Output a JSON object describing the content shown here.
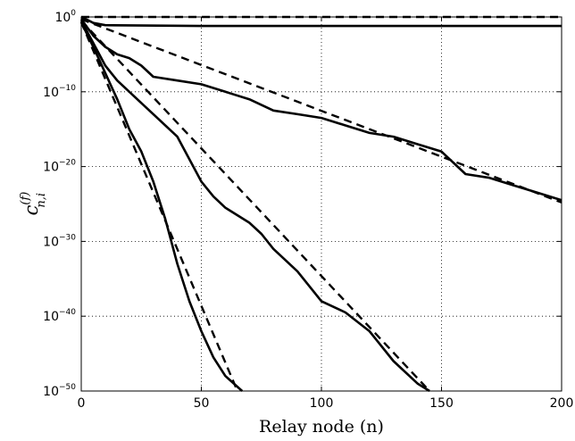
{
  "chart_data": {
    "type": "line",
    "title": "",
    "xlabel": "Relay node (n)",
    "ylabel": {
      "base": "c",
      "superscript": "(f)",
      "subscript": "n,i"
    },
    "xlim": [
      0,
      200
    ],
    "ylim_exponent": [
      -50,
      0
    ],
    "yscale": "log",
    "grid": true,
    "x_ticks": [
      "0",
      "50",
      "100",
      "150",
      "200"
    ],
    "y_ticks": [
      {
        "base": "10",
        "exp": "0"
      },
      {
        "base": "10",
        "exp": "−10"
      },
      {
        "base": "10",
        "exp": "−20"
      },
      {
        "base": "10",
        "exp": "−30"
      },
      {
        "base": "10",
        "exp": "−40"
      },
      {
        "base": "10",
        "exp": "−50"
      }
    ],
    "series": [
      {
        "style": "dashed",
        "log10_y": [
          [
            0,
            0
          ],
          [
            200,
            0
          ]
        ]
      },
      {
        "style": "solid",
        "log10_y": [
          [
            0,
            0
          ],
          [
            2,
            -0.3
          ],
          [
            5,
            -0.8
          ],
          [
            10,
            -1.1
          ],
          [
            50,
            -1.2
          ],
          [
            100,
            -1.2
          ],
          [
            150,
            -1.2
          ],
          [
            200,
            -1.2
          ]
        ]
      },
      {
        "style": "dashed",
        "log10_y": [
          [
            0,
            -0.3
          ],
          [
            200,
            -24.8
          ]
        ]
      },
      {
        "style": "solid",
        "log10_y": [
          [
            0,
            -0.3
          ],
          [
            5,
            -2.5
          ],
          [
            10,
            -4.0
          ],
          [
            15,
            -5.0
          ],
          [
            20,
            -5.5
          ],
          [
            25,
            -6.5
          ],
          [
            30,
            -8.0
          ],
          [
            40,
            -8.5
          ],
          [
            50,
            -9.0
          ],
          [
            60,
            -10.0
          ],
          [
            70,
            -11.0
          ],
          [
            80,
            -12.5
          ],
          [
            90,
            -13.0
          ],
          [
            100,
            -13.5
          ],
          [
            110,
            -14.5
          ],
          [
            120,
            -15.5
          ],
          [
            130,
            -16.0
          ],
          [
            140,
            -17.0
          ],
          [
            150,
            -18.0
          ],
          [
            160,
            -21.0
          ],
          [
            170,
            -21.5
          ],
          [
            180,
            -22.5
          ],
          [
            190,
            -23.5
          ],
          [
            200,
            -24.5
          ]
        ]
      },
      {
        "style": "dashed",
        "log10_y": [
          [
            0,
            -0.5
          ],
          [
            145,
            -50
          ]
        ]
      },
      {
        "style": "solid",
        "log10_y": [
          [
            0,
            -0.5
          ],
          [
            5,
            -3.5
          ],
          [
            10,
            -6.5
          ],
          [
            15,
            -8.5
          ],
          [
            20,
            -10.0
          ],
          [
            25,
            -11.5
          ],
          [
            30,
            -13.0
          ],
          [
            40,
            -16.0
          ],
          [
            50,
            -22.0
          ],
          [
            55,
            -24.0
          ],
          [
            60,
            -25.5
          ],
          [
            70,
            -27.5
          ],
          [
            75,
            -29.0
          ],
          [
            80,
            -31.0
          ],
          [
            90,
            -34.0
          ],
          [
            100,
            -38.0
          ],
          [
            110,
            -39.5
          ],
          [
            120,
            -42.0
          ],
          [
            130,
            -46.0
          ],
          [
            140,
            -49.0
          ],
          [
            145,
            -50
          ]
        ]
      },
      {
        "style": "dashed",
        "log10_y": [
          [
            0,
            -0.7
          ],
          [
            65,
            -50
          ]
        ]
      },
      {
        "style": "solid",
        "log10_y": [
          [
            0,
            -0.7
          ],
          [
            5,
            -4.0
          ],
          [
            10,
            -7.5
          ],
          [
            15,
            -11.0
          ],
          [
            20,
            -15.0
          ],
          [
            25,
            -18.0
          ],
          [
            30,
            -22.0
          ],
          [
            35,
            -27.0
          ],
          [
            40,
            -33.0
          ],
          [
            45,
            -38.0
          ],
          [
            50,
            -42.0
          ],
          [
            55,
            -45.5
          ],
          [
            60,
            -48.0
          ],
          [
            67,
            -50
          ]
        ]
      }
    ]
  }
}
